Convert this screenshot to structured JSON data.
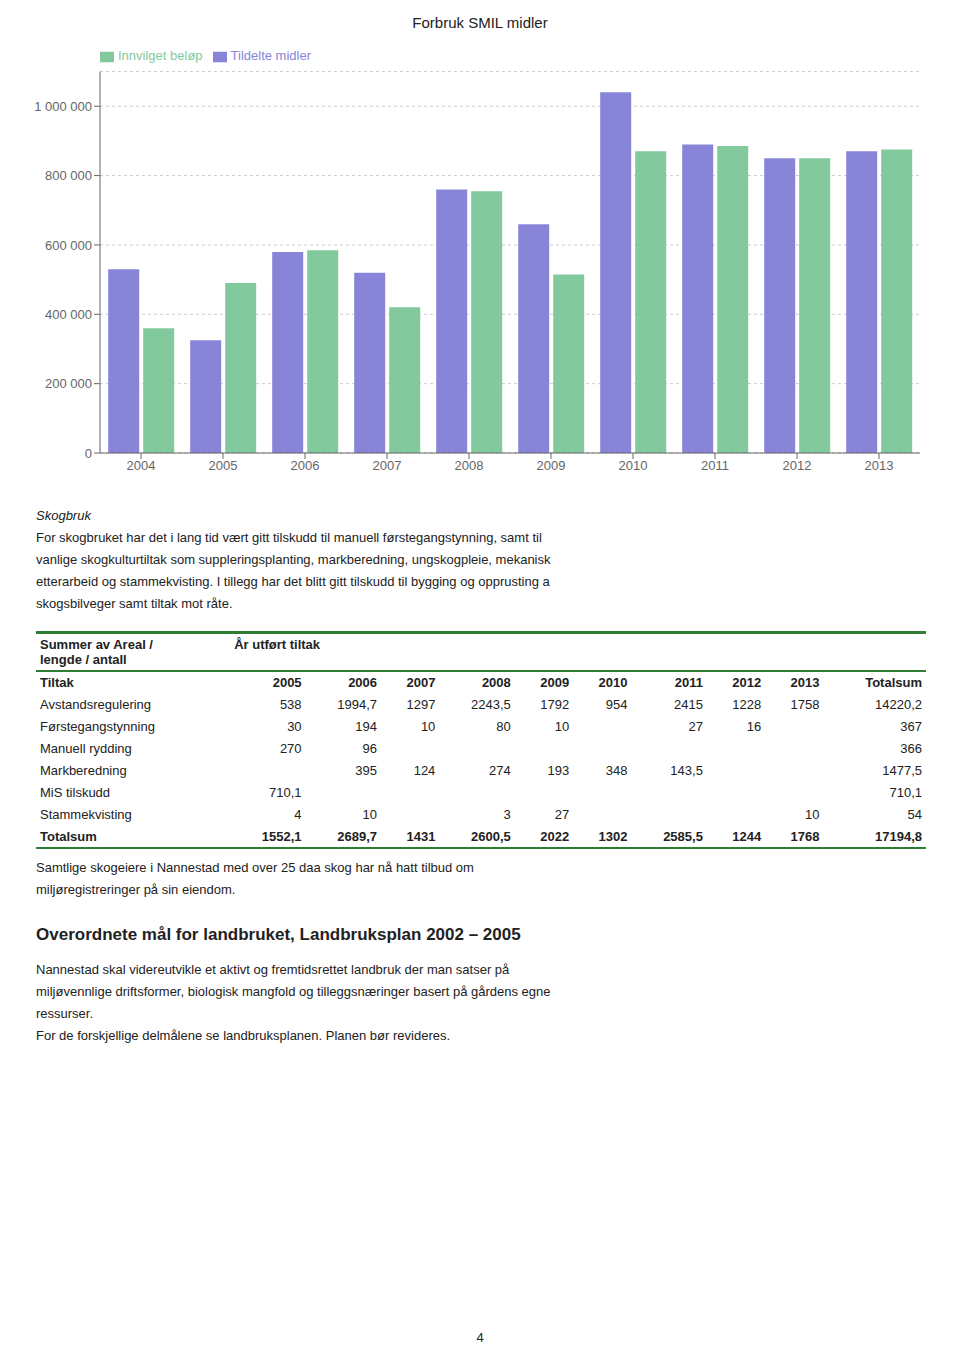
{
  "chart_data": {
    "type": "bar",
    "title": "Forbruk SMIL midler",
    "categories": [
      "2004",
      "2005",
      "2006",
      "2007",
      "2008",
      "2009",
      "2010",
      "2011",
      "2012",
      "2013"
    ],
    "series": [
      {
        "name": "Tildelte midler",
        "color": "#8884d8",
        "values": [
          530000,
          325000,
          580000,
          520000,
          760000,
          660000,
          1040000,
          890000,
          850000,
          870000
        ]
      },
      {
        "name": "Innvilget beløp",
        "color": "#82ca9d",
        "values": [
          360000,
          490000,
          585000,
          420000,
          755000,
          515000,
          870000,
          885000,
          850000,
          875000
        ]
      }
    ],
    "ylim": [
      0,
      1100000
    ],
    "yticks": [
      0,
      {
        "value": 200000,
        "label": "200 000"
      },
      {
        "value": 400000,
        "label": "400 000"
      },
      {
        "value": 600000,
        "label": "600 000"
      },
      {
        "value": 800000,
        "label": "800 000"
      },
      {
        "value": 1000000,
        "label": "1 000 000"
      }
    ],
    "grid": true,
    "legend": "upper left"
  },
  "text_before_table": {
    "heading": "Skogbruk",
    "lines": [
      "For skogbruket har det i lang tid vært gitt tilskudd til manuell førstegangstynning, samt til",
      "vanlige skogkulturtiltak som suppleringsplanting, markberedning, ungskogpleie, mekanisk",
      "etterarbeid og stammekvisting. I tillegg har det blitt gitt tilskudd til bygging og opprusting a",
      "skogsbilveger samt tiltak mot råte."
    ]
  },
  "table": {
    "header": [
      "Summer av Areal /",
      "lengde / antall"
    ],
    "header2": "År utført tiltak",
    "columns": [
      "Tiltak",
      "2005",
      "2006",
      "2007",
      "2008",
      "2009",
      "2010",
      "2011",
      "2012",
      "2013",
      "Totalsum"
    ],
    "rows": [
      [
        "Avstandsregulering",
        "538",
        "1994,7",
        "1297",
        "2243,5",
        "1792",
        "954",
        "2415",
        "1228",
        "1758",
        "14220,2"
      ],
      [
        "Førstegangstynning",
        "30",
        "194",
        "10",
        "80",
        "10",
        null,
        "27",
        "16",
        null,
        "367"
      ],
      [
        "Manuell rydding",
        "270",
        "96",
        null,
        null,
        null,
        null,
        null,
        null,
        null,
        "366"
      ],
      [
        "Markberedning",
        null,
        "395",
        "124",
        "274",
        "193",
        "348",
        "143,5",
        null,
        null,
        "1477,5"
      ],
      [
        "MiS tilskudd",
        "710,1",
        null,
        null,
        null,
        null,
        null,
        null,
        null,
        null,
        "710,1"
      ],
      [
        "Stammekvisting",
        "4",
        "10",
        null,
        "3",
        "27",
        null,
        null,
        null,
        "10",
        "54"
      ],
      [
        "Totalsum",
        "1552,1",
        "2689,7",
        "1431",
        "2600,5",
        "2022",
        "1302",
        "2585,5",
        "1244",
        "1768",
        "17194,8"
      ]
    ]
  },
  "text_after_table": {
    "lines": [
      "Samtlige skogeiere i Nannestad med over 25 daa skog har nå hatt tilbud om",
      "miljøregistreringer på sin eiendom."
    ]
  },
  "section": {
    "heading": "Overordnete mål for landbruket, Landbruksplan 2002 – 2005",
    "lines": [
      "Nannestad skal videreutvikle et aktivt og fremtidsrettet landbruk der man satser på",
      "miljøvennlige driftsformer, biologisk mangfold og tilleggsnæringer basert på gårdens egne",
      "ressurser.",
      "For de forskjellige delmålene se landbruksplanen. Planen bør revideres."
    ]
  },
  "page_number": "4"
}
